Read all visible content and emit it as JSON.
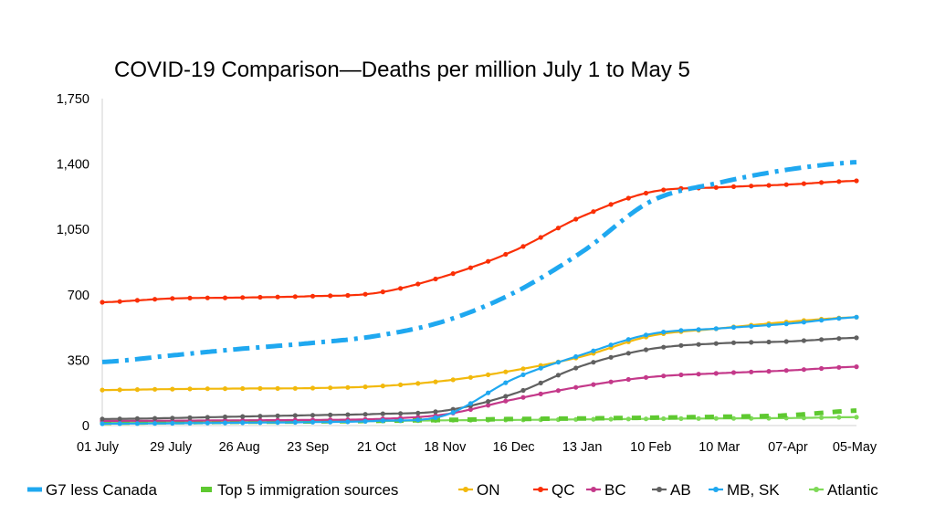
{
  "chart_data": {
    "type": "line",
    "title": "COVID-19 Comparison—Deaths per million July 1 to May 5",
    "xlabel": "",
    "ylabel": "",
    "ylim": [
      0,
      1750
    ],
    "y_ticks": [
      0,
      350,
      700,
      1050,
      1400,
      1750
    ],
    "y_tick_labels": [
      "0",
      "350",
      "700",
      "1,050",
      "1,400",
      "1,750"
    ],
    "x_tick_labels": [
      "01 July",
      "29 July",
      "26 Aug",
      "23 Sep",
      "21 Oct",
      "18 Nov",
      "16 Dec",
      "13 Jan",
      "10 Feb",
      "10 Mar",
      "07-Apr",
      "05-May"
    ],
    "grid": false,
    "legend_position": "bottom",
    "series": [
      {
        "name": "G7 less Canada",
        "color": "#1fa8f0",
        "style": "dashdot",
        "values": [
          340,
          375,
          410,
          440,
          480,
          560,
          710,
          930,
          1200,
          1300,
          1370,
          1410
        ]
      },
      {
        "name": "Top 5 immigration sources",
        "color": "#5ec930",
        "style": "dash",
        "values": [
          15,
          18,
          20,
          22,
          25,
          30,
          35,
          38,
          42,
          47,
          55,
          80
        ]
      },
      {
        "name": "ON",
        "color": "#f2b90c",
        "style": "dot",
        "values": [
          190,
          195,
          198,
          200,
          210,
          240,
          295,
          370,
          480,
          520,
          555,
          580
        ]
      },
      {
        "name": "QC",
        "color": "#fa2f05",
        "style": "dot",
        "values": [
          660,
          680,
          685,
          692,
          710,
          800,
          935,
          1120,
          1250,
          1275,
          1290,
          1310
        ]
      },
      {
        "name": "BC",
        "color": "#c4398a",
        "style": "dot",
        "values": [
          25,
          26,
          28,
          30,
          35,
          60,
          140,
          210,
          260,
          280,
          295,
          315
        ]
      },
      {
        "name": "AB",
        "color": "#606060",
        "style": "dot",
        "values": [
          35,
          40,
          48,
          55,
          62,
          80,
          170,
          320,
          410,
          440,
          450,
          470
        ]
      },
      {
        "name": "MB, SK",
        "color": "#1fa8f0",
        "style": "dot",
        "values": [
          10,
          12,
          15,
          18,
          25,
          55,
          250,
          380,
          490,
          520,
          545,
          580
        ]
      },
      {
        "name": "Atlantic",
        "color": "#7ed957",
        "style": "dot",
        "values": [
          15,
          18,
          20,
          22,
          24,
          28,
          30,
          33,
          36,
          38,
          40,
          45
        ]
      }
    ]
  }
}
